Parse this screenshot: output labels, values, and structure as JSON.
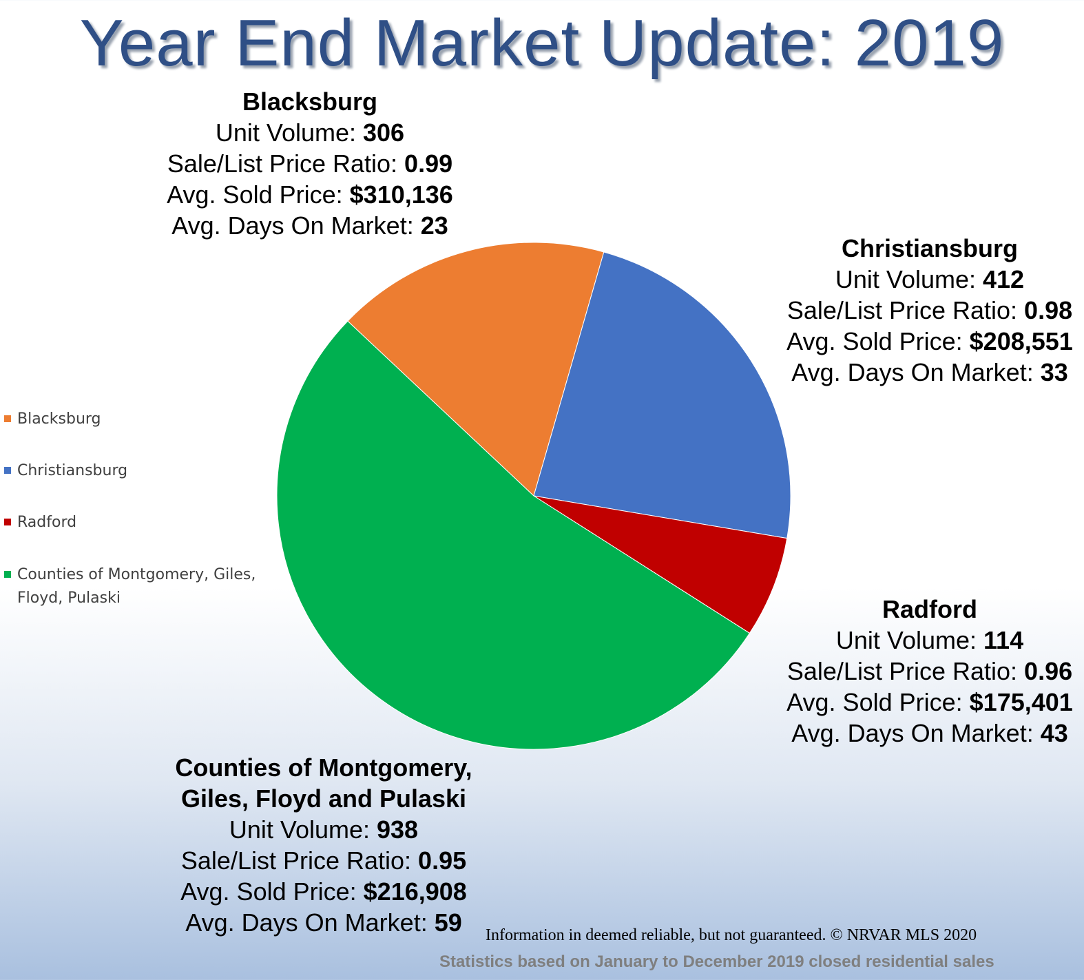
{
  "chart_data": {
    "type": "pie",
    "title": "Year End Market Update: 2019",
    "slices": [
      {
        "label": "Blacksburg",
        "value": 306,
        "color": "#ED7D31"
      },
      {
        "label": "Christiansburg",
        "value": 412,
        "color": "#4472C4"
      },
      {
        "label": "Radford",
        "value": 114,
        "color": "#C00000"
      },
      {
        "label": "Counties of Montgomery, Giles, Floyd, Pulaski",
        "value": 938,
        "color": "#00B050"
      }
    ],
    "legend_position": "left"
  },
  "annotations": [
    {
      "name": "Blacksburg",
      "name_lines": [
        "Blacksburg"
      ],
      "unit_volume_label": "Unit Volume:",
      "unit_volume": "306",
      "ratio_label": "Sale/List Price Ratio:",
      "ratio": "0.99",
      "price_label": "Avg. Sold Price:",
      "price": "$310,136",
      "dom_label": "Avg. Days On Market:",
      "dom": "23"
    },
    {
      "name": "Christiansburg",
      "name_lines": [
        "Christiansburg"
      ],
      "unit_volume_label": "Unit Volume:",
      "unit_volume": "412",
      "ratio_label": "Sale/List Price Ratio:",
      "ratio": "0.98",
      "price_label": "Avg. Sold Price:",
      "price": "$208,551",
      "dom_label": "Avg. Days On Market:",
      "dom": "33"
    },
    {
      "name": "Radford",
      "name_lines": [
        "Radford"
      ],
      "unit_volume_label": "Unit Volume:",
      "unit_volume": "114",
      "ratio_label": "Sale/List Price Ratio:",
      "ratio": "0.96",
      "price_label": "Avg. Sold Price:",
      "price": "$175,401",
      "dom_label": "Avg. Days On Market:",
      "dom": "43"
    },
    {
      "name": "Counties of Montgomery, Giles, Floyd and Pulaski",
      "name_lines": [
        "Counties of Montgomery,",
        "Giles, Floyd and Pulaski"
      ],
      "unit_volume_label": "Unit Volume:",
      "unit_volume": "938",
      "ratio_label": "Sale/List Price Ratio:",
      "ratio": "0.95",
      "price_label": "Avg. Sold Price:",
      "price": "$216,908",
      "dom_label": "Avg. Days On Market:",
      "dom": "59"
    }
  ],
  "footer": {
    "disclaimer": "Information in deemed reliable, but not guaranteed. © NRVAR MLS 2020",
    "stats_note": "Statistics based on January to December 2019 closed residential sales"
  }
}
